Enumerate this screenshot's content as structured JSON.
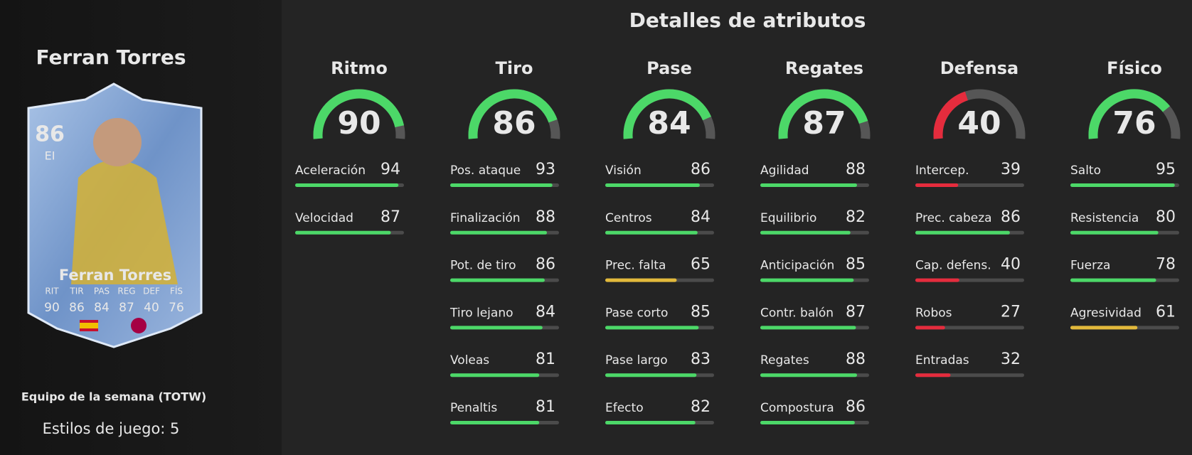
{
  "title": "Detalles de atributos",
  "range": [
    0,
    99
  ],
  "player": {
    "name": "Ferran Torres",
    "rating": 86,
    "position": "EI",
    "card_stats": [
      {
        "label": "RIT",
        "value": 90
      },
      {
        "label": "TIR",
        "value": 86
      },
      {
        "label": "PAS",
        "value": 84
      },
      {
        "label": "REG",
        "value": 87
      },
      {
        "label": "DEF",
        "value": 40
      },
      {
        "label": "FÍS",
        "value": 76
      }
    ],
    "card_type": "Equipo de la semana (TOTW)",
    "playstyles": "Estilos de juego: 5"
  },
  "categories": [
    {
      "name": "Ritmo",
      "value": 90,
      "color": "#4cd868",
      "attributes": [
        {
          "name": "Aceleración",
          "value": 94
        },
        {
          "name": "Velocidad",
          "value": 87
        }
      ]
    },
    {
      "name": "Tiro",
      "value": 86,
      "color": "#4cd868",
      "attributes": [
        {
          "name": "Pos. ataque",
          "value": 93
        },
        {
          "name": "Finalización",
          "value": 88
        },
        {
          "name": "Pot. de tiro",
          "value": 86
        },
        {
          "name": "Tiro lejano",
          "value": 84
        },
        {
          "name": "Voleas",
          "value": 81
        },
        {
          "name": "Penaltis",
          "value": 81
        }
      ]
    },
    {
      "name": "Pase",
      "value": 84,
      "color": "#4cd868",
      "attributes": [
        {
          "name": "Visión",
          "value": 86
        },
        {
          "name": "Centros",
          "value": 84
        },
        {
          "name": "Prec. falta",
          "value": 65,
          "color": "#e2b93b"
        },
        {
          "name": "Pase corto",
          "value": 85
        },
        {
          "name": "Pase largo",
          "value": 83
        },
        {
          "name": "Efecto",
          "value": 82
        }
      ]
    },
    {
      "name": "Regates",
      "value": 87,
      "color": "#4cd868",
      "attributes": [
        {
          "name": "Agilidad",
          "value": 88
        },
        {
          "name": "Equilibrio",
          "value": 82
        },
        {
          "name": "Anticipación",
          "value": 85
        },
        {
          "name": "Contr. balón",
          "value": 87
        },
        {
          "name": "Regates",
          "value": 88
        },
        {
          "name": "Compostura",
          "value": 86
        }
      ]
    },
    {
      "name": "Defensa",
      "value": 40,
      "color": "#e52c3d",
      "attributes": [
        {
          "name": "Intercep.",
          "value": 39
        },
        {
          "name": "Prec. cabeza",
          "value": 86,
          "color": "#4cd868"
        },
        {
          "name": "Cap. defens.",
          "value": 40
        },
        {
          "name": "Robos",
          "value": 27
        },
        {
          "name": "Entradas",
          "value": 32
        }
      ]
    },
    {
      "name": "Físico",
      "value": 76,
      "color": "#4cd868",
      "attributes": [
        {
          "name": "Salto",
          "value": 95
        },
        {
          "name": "Resistencia",
          "value": 80
        },
        {
          "name": "Fuerza",
          "value": 78
        },
        {
          "name": "Agresividad",
          "value": 61,
          "color": "#e2b93b"
        }
      ]
    }
  ]
}
